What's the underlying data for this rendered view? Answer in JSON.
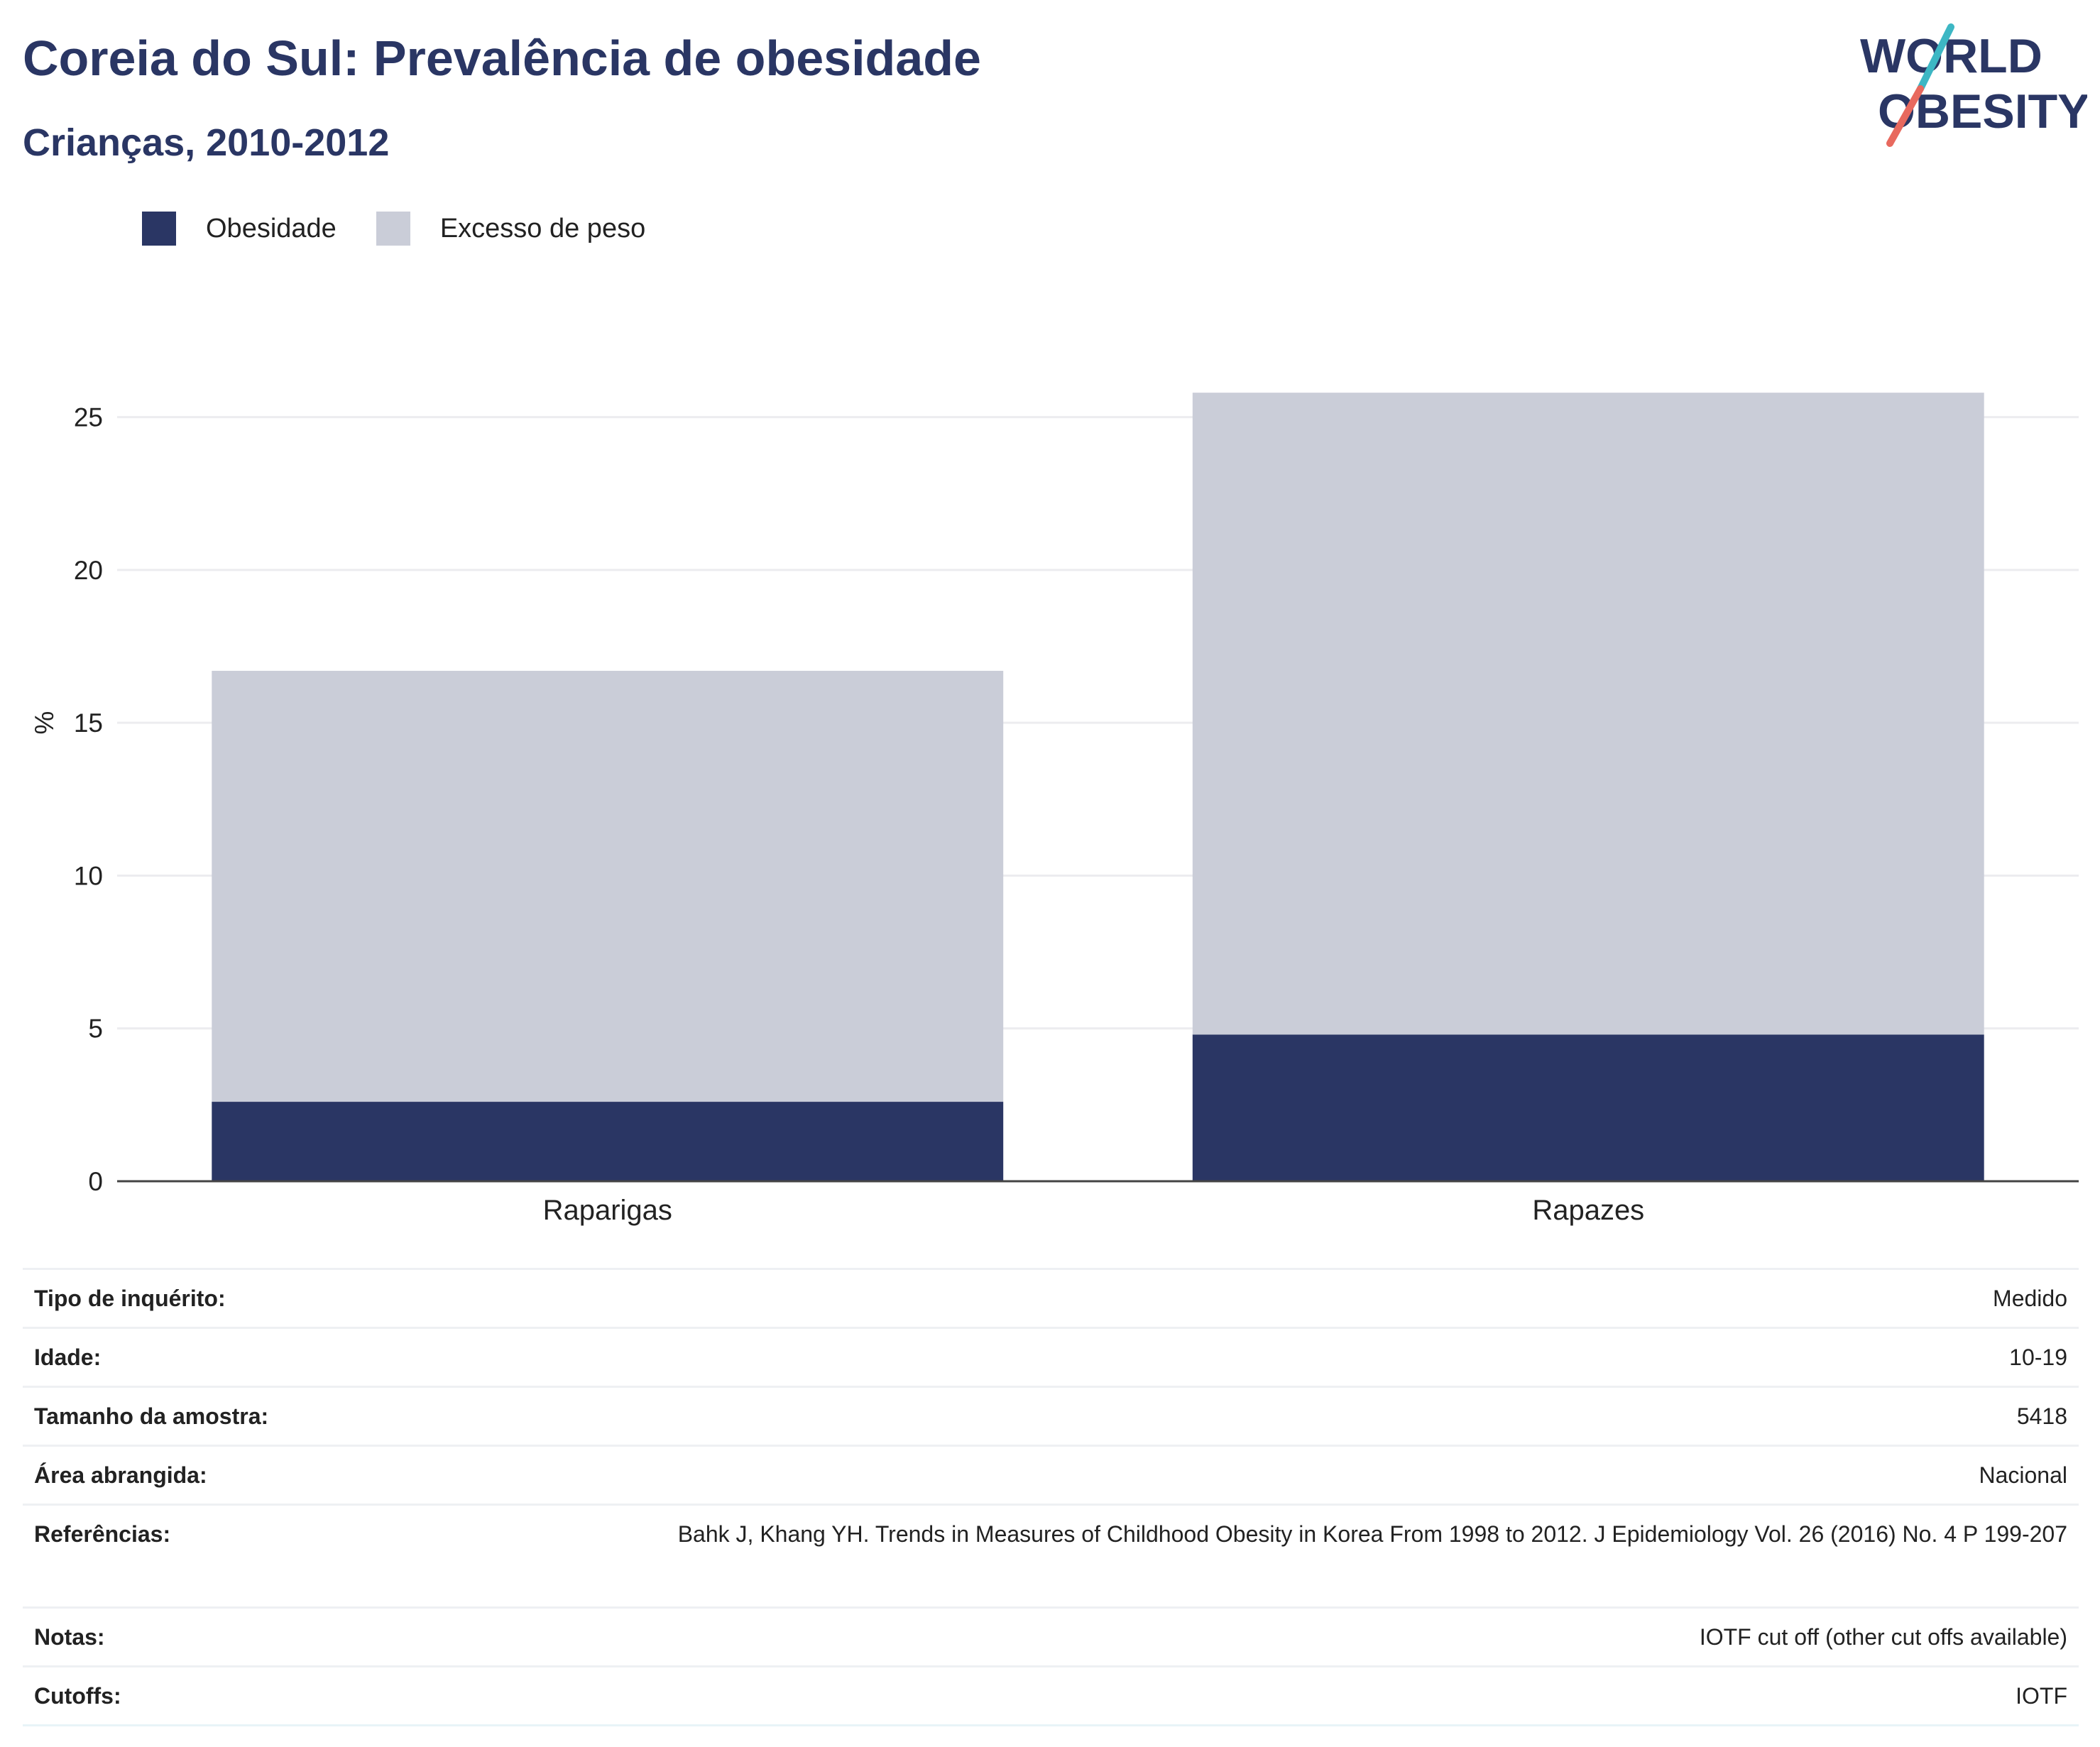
{
  "header": {
    "title": "Coreia do Sul: Prevalência de obesidade",
    "subtitle": "Crianças, 2010-2012",
    "logo_line1": "WORLD",
    "logo_line2": "OBESITY"
  },
  "legend": [
    {
      "label": "Obesidade",
      "color": "#2a3664"
    },
    {
      "label": "Excesso de peso",
      "color": "#cacdd8"
    }
  ],
  "chart_data": {
    "type": "bar",
    "stacked": true,
    "categories": [
      "Raparigas",
      "Rapazes"
    ],
    "series": [
      {
        "name": "Obesidade",
        "values": [
          2.6,
          4.8
        ],
        "color": "#2a3664"
      },
      {
        "name": "Excesso de peso",
        "values": [
          14.1,
          21.0
        ],
        "color": "#cacdd8"
      }
    ],
    "xlabel": "",
    "ylabel": "%",
    "ylim": [
      0,
      27.5
    ],
    "yticks": [
      0,
      5,
      10,
      15,
      20,
      25
    ],
    "grid": true,
    "legend_position": "top-left"
  },
  "info_table": [
    {
      "key": "Tipo de inquérito:",
      "value": "Medido"
    },
    {
      "key": "Idade:",
      "value": "10-19"
    },
    {
      "key": "Tamanho da amostra:",
      "value": "5418"
    },
    {
      "key": "Área abrangida:",
      "value": "Nacional"
    },
    {
      "key": "Referências:",
      "value": "Bahk J, Khang YH. Trends in Measures of Childhood Obesity in Korea From 1998 to 2012. J Epidemiology Vol. 26 (2016) No. 4 P 199-207"
    },
    {
      "key": "Notas:",
      "value": "IOTF cut off (other cut offs available)"
    },
    {
      "key": "Cutoffs:",
      "value": "IOTF"
    }
  ]
}
